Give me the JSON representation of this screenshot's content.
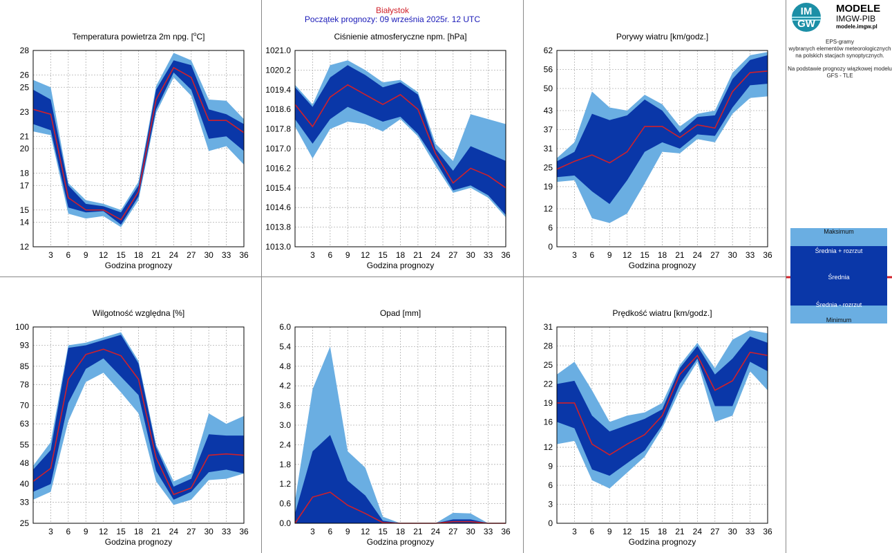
{
  "header": {
    "station": "Białystok",
    "forecast_start": "Początek prognozy: 09 września 2025r. 12 UTC"
  },
  "logo": {
    "mark_top": "IM",
    "mark_bottom": "GW",
    "title": "MODELE",
    "subtitle": "IMGW-PIB",
    "url": "modele.imgw.pl"
  },
  "info": {
    "line1": "EPS-gramy",
    "line2": "wybranych elementów meteorologicznych",
    "line3": "na polskich stacjach synoptycznych.",
    "line4": "Na podstawie prognozy wiązkowej modelu",
    "line5": "GFS - TLE"
  },
  "legend": {
    "max": "Maksimum",
    "mean_plus": "Średnia + rozrzut",
    "mean": "Średnia",
    "mean_minus": "Średnia - rozrzut",
    "min": "Minimum"
  },
  "colors": {
    "outer_band": "#6aaee2",
    "inner_band": "#0a37a8",
    "mean_line": "#d0202a",
    "grid": "#b0b0b0"
  },
  "chart_data": [
    {
      "type": "area",
      "title": "Temperatura powietrza 2m npg. [",
      "title_sup": "o",
      "title_suffix": "C]",
      "xlabel": "Godzina prognozy",
      "x": [
        0,
        3,
        6,
        9,
        12,
        15,
        18,
        21,
        24,
        27,
        30,
        33,
        36
      ],
      "xticks": [
        3,
        6,
        9,
        12,
        15,
        18,
        21,
        24,
        27,
        30,
        33,
        36
      ],
      "ylim": [
        12,
        28
      ],
      "yticks": [
        12,
        14,
        15,
        17,
        18,
        20,
        21,
        23,
        25,
        26,
        28
      ],
      "max": [
        25.6,
        25.0,
        17.2,
        15.8,
        15.5,
        15.0,
        17.3,
        25.1,
        27.8,
        27.2,
        24.0,
        23.9,
        22.4
      ],
      "mean_plus": [
        24.8,
        24.0,
        17.0,
        15.5,
        15.3,
        14.8,
        17.0,
        24.8,
        27.2,
        26.8,
        23.2,
        22.8,
        22.0
      ],
      "mean": [
        23.2,
        22.8,
        16.0,
        15.0,
        15.0,
        14.2,
        16.5,
        24.0,
        26.6,
        25.8,
        22.3,
        22.3,
        21.3
      ],
      "mean_minus": [
        22.0,
        21.5,
        15.2,
        14.8,
        14.9,
        13.8,
        16.1,
        23.2,
        26.2,
        24.8,
        20.8,
        21.0,
        19.8
      ],
      "min": [
        21.4,
        21.1,
        14.7,
        14.3,
        14.5,
        13.6,
        15.8,
        22.9,
        25.8,
        24.3,
        19.8,
        20.2,
        18.7
      ]
    },
    {
      "type": "area",
      "title": "Ciśnienie atmosferyczne npm. [hPa]",
      "xlabel": "",
      "x": [
        0,
        3,
        6,
        9,
        12,
        15,
        18,
        21,
        24,
        27,
        30,
        33,
        36
      ],
      "xticks": [
        3,
        6,
        9,
        12,
        15,
        18,
        21,
        24,
        27,
        30,
        33,
        36
      ],
      "ylim": [
        1013.0,
        1021.0
      ],
      "yticks": [
        1013.0,
        1013.8,
        1014.6,
        1015.4,
        1016.2,
        1017.0,
        1017.8,
        1018.6,
        1019.4,
        1020.2,
        1021.0
      ],
      "max": [
        1019.6,
        1018.8,
        1020.4,
        1020.6,
        1020.2,
        1019.7,
        1019.8,
        1019.3,
        1017.2,
        1016.5,
        1018.4,
        1018.2,
        1018.0
      ],
      "mean_plus": [
        1019.5,
        1018.7,
        1019.9,
        1020.4,
        1020.0,
        1019.5,
        1019.7,
        1019.2,
        1017.0,
        1016.1,
        1017.1,
        1016.8,
        1016.5
      ],
      "mean": [
        1018.8,
        1017.9,
        1019.1,
        1019.6,
        1019.2,
        1018.8,
        1019.2,
        1018.6,
        1016.8,
        1015.6,
        1016.2,
        1015.9,
        1015.4
      ],
      "mean_minus": [
        1018.2,
        1017.2,
        1018.2,
        1018.7,
        1018.4,
        1018.1,
        1018.3,
        1017.6,
        1016.5,
        1015.3,
        1015.5,
        1015.1,
        1014.3
      ],
      "min": [
        1017.9,
        1016.6,
        1017.8,
        1018.1,
        1018.0,
        1017.7,
        1018.2,
        1017.5,
        1016.3,
        1015.2,
        1015.4,
        1015.0,
        1014.2
      ]
    },
    {
      "type": "area",
      "title": "Porywy wiatru [km/godz.]",
      "xlabel": "Godzina prognozy",
      "x": [
        0,
        3,
        6,
        9,
        12,
        15,
        18,
        21,
        24,
        27,
        30,
        33,
        36
      ],
      "xticks": [
        3,
        6,
        9,
        12,
        15,
        18,
        21,
        24,
        27,
        30,
        33,
        36
      ],
      "ylim": [
        0,
        62
      ],
      "yticks": [
        0,
        6,
        12,
        19,
        25,
        31,
        37,
        43,
        50,
        56,
        62
      ],
      "max": [
        28.0,
        33.0,
        49.0,
        44.0,
        43.0,
        48.0,
        45.0,
        38.0,
        42.0,
        43.0,
        55.0,
        60.5,
        61.5
      ],
      "mean_plus": [
        27.0,
        30.0,
        42.0,
        40.0,
        41.5,
        46.5,
        43.0,
        36.0,
        41.0,
        41.5,
        53.0,
        59.0,
        60.5
      ],
      "mean": [
        24.5,
        27.0,
        29.0,
        26.5,
        30.0,
        38.0,
        38.0,
        34.5,
        38.5,
        37.5,
        49.0,
        55.0,
        55.5
      ],
      "mean_minus": [
        22.0,
        22.5,
        17.5,
        13.5,
        21.0,
        30.0,
        33.0,
        31.0,
        35.5,
        35.0,
        44.0,
        51.0,
        51.5
      ],
      "min": [
        20.5,
        21.0,
        9.0,
        7.5,
        10.5,
        20.0,
        30.0,
        29.5,
        34.0,
        33.0,
        42.0,
        47.0,
        47.5
      ]
    },
    {
      "type": "area",
      "title": "Wilgotność względna [%]",
      "xlabel": "Godzina prognozy",
      "x": [
        0,
        3,
        6,
        9,
        12,
        15,
        18,
        21,
        24,
        27,
        30,
        33,
        36
      ],
      "xticks": [
        3,
        6,
        9,
        12,
        15,
        18,
        21,
        24,
        27,
        30,
        33,
        36
      ],
      "ylim": [
        25,
        100
      ],
      "yticks": [
        25,
        33,
        40,
        48,
        55,
        63,
        70,
        78,
        85,
        93,
        100
      ],
      "max": [
        47.0,
        56.0,
        93.0,
        94.0,
        96.0,
        98.0,
        87.0,
        55.0,
        41.0,
        44.0,
        67.0,
        63.0,
        66.0
      ],
      "mean_plus": [
        45.5,
        53.0,
        92.0,
        93.0,
        95.0,
        97.0,
        86.0,
        54.0,
        39.0,
        42.0,
        59.0,
        58.5,
        58.5
      ],
      "mean": [
        41.0,
        46.0,
        80.0,
        89.5,
        91.5,
        89.0,
        80.0,
        50.0,
        36.0,
        38.5,
        51.0,
        51.5,
        51.0
      ],
      "mean_minus": [
        37.0,
        40.0,
        71.0,
        84.0,
        88.0,
        81.0,
        74.0,
        45.0,
        34.0,
        37.0,
        44.5,
        45.5,
        44.0
      ],
      "min": [
        34.0,
        37.0,
        64.0,
        79.0,
        82.5,
        75.0,
        67.0,
        41.0,
        32.0,
        34.0,
        41.5,
        42.0,
        44.0
      ]
    },
    {
      "type": "area",
      "title": "Opad [mm]",
      "xlabel": "Godzina prognozy",
      "x": [
        0,
        3,
        6,
        9,
        12,
        15,
        18,
        21,
        24,
        27,
        30,
        33,
        36
      ],
      "xticks": [
        3,
        6,
        9,
        12,
        15,
        18,
        21,
        24,
        27,
        30,
        33,
        36
      ],
      "ylim": [
        0.0,
        6.0
      ],
      "yticks": [
        0.0,
        0.6,
        1.2,
        1.8,
        2.4,
        3.0,
        3.6,
        4.2,
        4.8,
        5.4,
        6.0
      ],
      "max": [
        0.7,
        4.1,
        5.4,
        2.2,
        1.7,
        0.2,
        0.0,
        0.0,
        0.0,
        0.32,
        0.3,
        0.0,
        0.0
      ],
      "mean_plus": [
        0.3,
        2.2,
        2.7,
        1.3,
        0.85,
        0.08,
        0.0,
        0.0,
        0.0,
        0.12,
        0.12,
        0.0,
        0.0
      ],
      "mean": [
        0.0,
        0.8,
        0.95,
        0.55,
        0.3,
        0.02,
        0.0,
        0.0,
        0.0,
        0.05,
        0.05,
        0.0,
        0.0
      ],
      "mean_minus": [
        0.0,
        0.0,
        0.0,
        0.0,
        0.0,
        0.0,
        0.0,
        0.0,
        0.0,
        0.0,
        0.0,
        0.0,
        0.0
      ],
      "min": [
        0.0,
        0.0,
        0.0,
        0.0,
        0.0,
        0.0,
        0.0,
        0.0,
        0.0,
        0.0,
        0.0,
        0.0,
        0.0
      ]
    },
    {
      "type": "area",
      "title": "Prędkość wiatru [km/godz.]",
      "xlabel": "Godzina prognozy",
      "x": [
        0,
        3,
        6,
        9,
        12,
        15,
        18,
        21,
        24,
        27,
        30,
        33,
        36
      ],
      "xticks": [
        3,
        6,
        9,
        12,
        15,
        18,
        21,
        24,
        27,
        30,
        33,
        36
      ],
      "ylim": [
        0,
        31
      ],
      "yticks": [
        0,
        3,
        6,
        9,
        12,
        16,
        19,
        22,
        25,
        28,
        31
      ],
      "max": [
        23.5,
        25.5,
        21.0,
        16.0,
        17.0,
        17.5,
        19.0,
        25.0,
        28.5,
        24.5,
        29.0,
        30.5,
        30.0
      ],
      "mean_plus": [
        22.0,
        22.5,
        17.0,
        14.5,
        15.5,
        16.5,
        18.0,
        24.5,
        28.0,
        23.5,
        26.0,
        29.5,
        28.5
      ],
      "mean": [
        19.0,
        19.0,
        12.5,
        10.8,
        12.5,
        14.0,
        17.0,
        23.5,
        26.5,
        21.0,
        22.5,
        27.0,
        26.5
      ],
      "mean_minus": [
        16.0,
        15.0,
        8.5,
        7.5,
        9.5,
        11.5,
        15.5,
        22.0,
        26.0,
        18.5,
        18.5,
        25.5,
        24.0
      ],
      "min": [
        12.5,
        13.0,
        6.8,
        5.5,
        8.0,
        10.5,
        15.0,
        21.0,
        25.5,
        16.0,
        17.0,
        24.0,
        21.0
      ]
    }
  ]
}
